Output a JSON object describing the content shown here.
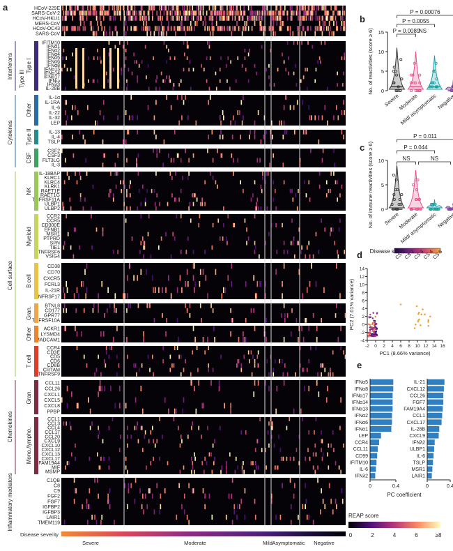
{
  "chart_data": [
    {
      "panel": "a",
      "type": "heatmap",
      "colorbar": {
        "title": "REAP score",
        "ticks": [
          "0",
          "2",
          "4",
          "6",
          "≥8"
        ],
        "range": [
          0,
          8
        ]
      },
      "xlabel": "Disease severity",
      "severity_groups": [
        "Severe",
        "Moderate",
        "Mild",
        "Asymptomatic",
        "Negative"
      ],
      "blocks": [
        {
          "label": "",
          "rows": [
            "HCoV-229E",
            "SARS-CoV-2",
            "HCoV-HKU1",
            "MERS-CoV",
            "HCoV-OC43",
            "SARS-CoV"
          ]
        },
        {
          "label": "Type I",
          "rows": [
            "IFITM10",
            "IFNα1",
            "IFNα2",
            "IFNα4",
            "IFNα5",
            "IFNα6",
            "IFNα8",
            "IFNα13",
            "IFNα14",
            "IFNα17",
            "IFNω",
            "IFNλ3",
            "IL-28B"
          ]
        },
        {
          "label": "Other",
          "rows": [
            "IL-1α",
            "IL-1RA",
            "IL-6",
            "IL-22",
            "IL-32",
            "LEP"
          ]
        },
        {
          "label": "Type II",
          "rows": [
            "IL-13",
            "IL-4",
            "TSLP"
          ]
        },
        {
          "label": "CSF",
          "rows": [
            "CSF2",
            "CSF3",
            "FLT3LG",
            "IL-3"
          ]
        },
        {
          "label": "NK",
          "rows": [
            "IL-18BAP",
            "KLRC1",
            "KLRC4",
            "KLRK1",
            "RAET1E",
            "RAET1G",
            "TNFRSF11A",
            "ULBP1",
            "ULBP2"
          ]
        },
        {
          "label": "Myeloid",
          "rows": [
            "CCR2",
            "CCR5",
            "CD300E",
            "EFNB1",
            "MSR1",
            "PTPRD",
            "SPN",
            "TIE1",
            "TNFRSF6",
            "VSIG4"
          ]
        },
        {
          "label": "B cell",
          "rows": [
            "CD38",
            "CD70",
            "CXCR5",
            "FCRL3",
            "IL-21R",
            "TNFRSF17"
          ]
        },
        {
          "label": "Gran.",
          "rows": [
            "BTNL8",
            "CD177",
            "GPR77",
            "TNFRSF10A"
          ]
        },
        {
          "label": "Other",
          "rows": [
            "ACKR1",
            "LYSMD4",
            "MADCAM1"
          ]
        },
        {
          "label": "T cell",
          "rows": [
            "CCR4",
            "CD3E",
            "CD5",
            "CD6",
            "CD8B",
            "CRTAM",
            "TNFRSF9"
          ]
        },
        {
          "label": "Gran.",
          "rows": [
            "CCL11",
            "CCL26",
            "CXCL1",
            "CXCL5",
            "CXCL8",
            "PPBP"
          ]
        },
        {
          "label": "Mono./lympho.",
          "rows": [
            "CCL1",
            "CCL3",
            "CCL4",
            "CCL17",
            "CCL20",
            "CXCL9",
            "CXCL10",
            "CXCL12",
            "CXCL13",
            "CXCL17",
            "FAM19A4",
            "MIF",
            "MSMP"
          ]
        },
        {
          "label": "",
          "rows": [
            "C1QB",
            "C8",
            "C9",
            "FGF2",
            "FGF7",
            "IGFBP2",
            "IGFBP3",
            "LAIR1",
            "TMEM119"
          ]
        }
      ],
      "side_labels": {
        "interferons": "Interferons",
        "type_iii": "Type III",
        "cytokines": "Cytokines",
        "cell_surface": "Cell surface",
        "chemokines": "Chemokines",
        "inflammatory": "Inflammatory mediators"
      }
    },
    {
      "panel": "b",
      "type": "scatter",
      "ylabel": "No. of reactivities (score ≥ 6)",
      "categories": [
        "Severe",
        "Moderate",
        "Mild/ asymptomatic",
        "Negative"
      ],
      "ylim": [
        0,
        15
      ],
      "yticks": [
        "0",
        "5",
        "10",
        "15"
      ],
      "medians": [
        1,
        1,
        1,
        0
      ],
      "max": [
        11,
        10,
        9,
        3
      ],
      "comparisons": [
        {
          "label": "P = 0.00076"
        },
        {
          "label": "P = 0.0055"
        },
        {
          "label": "P = 0.0089"
        },
        {
          "label": "NS"
        }
      ]
    },
    {
      "panel": "c",
      "type": "scatter",
      "ylabel": "No. of immune reactivities (score ≥ 6)",
      "categories": [
        "Severe",
        "Moderate",
        "Mild/ asymptomatic",
        "Negative"
      ],
      "ylim": [
        0,
        10
      ],
      "yticks": [
        "0",
        "5",
        "10"
      ],
      "medians": [
        0,
        0,
        0,
        0
      ],
      "max": [
        9,
        8,
        2,
        1
      ],
      "comparisons": [
        {
          "label": "P = 0.011"
        },
        {
          "label": "P = 0.044"
        },
        {
          "label": "NS"
        },
        {
          "label": "NS"
        }
      ]
    },
    {
      "panel": "d",
      "type": "scatter",
      "title": "Disease severity",
      "legend": [
        "CS 1",
        "CS 2",
        "CS 3",
        "CS 4",
        "CS 5"
      ],
      "xlabel": "PC1 (8.66% variance)",
      "ylabel": "PC2 (7.01% variance)",
      "xlim": [
        -2,
        16
      ],
      "ylim": [
        -4,
        14
      ],
      "xticks": [
        "-2",
        "0",
        "2",
        "4",
        "6",
        "8",
        "10",
        "12",
        "14",
        "16"
      ],
      "yticks": [
        "-4",
        "-2",
        "0",
        "2",
        "4",
        "6",
        "8",
        "10",
        "12",
        "14"
      ]
    },
    {
      "panel": "e",
      "type": "bar",
      "xlabel": "PC coefficient",
      "xticks": [
        "0",
        "0.4"
      ],
      "series": [
        {
          "name": "PC1",
          "categories": [
            "IFNα5",
            "IFNα8",
            "IFNα17",
            "IFNα14",
            "IFNα13",
            "IFNα2",
            "IFNα6",
            "IFNα1",
            "LEP",
            "CCR4",
            "CCL11",
            "CD99",
            "IFITM10",
            "IL-6",
            "IFNλ2"
          ],
          "values": [
            0.36,
            0.36,
            0.35,
            0.35,
            0.35,
            0.34,
            0.34,
            0.33,
            0.17,
            0.14,
            0.12,
            0.11,
            0.1,
            0.09,
            0.08
          ]
        },
        {
          "name": "PC2",
          "categories": [
            "IL-21",
            "CXCL12",
            "CCL26",
            "FGF7",
            "FAM19A4",
            "CCL1",
            "CXCL17",
            "IL-28B",
            "CXCL9",
            "IFNλ2",
            "ULBP1",
            "IL-6",
            "TSLP",
            "MSR1",
            "LAIR1"
          ],
          "values": [
            0.3,
            0.29,
            0.28,
            0.28,
            0.27,
            0.26,
            0.25,
            0.21,
            0.2,
            0.13,
            0.12,
            0.11,
            0.1,
            0.09,
            0.08
          ]
        }
      ]
    }
  ],
  "panel_letters": {
    "a": "a",
    "b": "b",
    "c": "c",
    "d": "d",
    "e": "e"
  },
  "colors": {
    "heat_low": "#000004",
    "heat_mid": "#b73779",
    "heat_high": "#fcfdbf",
    "bar": "#2f7fc1",
    "severe": "#333333",
    "moderate": "#e84f8a",
    "mild": "#1aa1a6",
    "negative": "#7b3fa0"
  }
}
